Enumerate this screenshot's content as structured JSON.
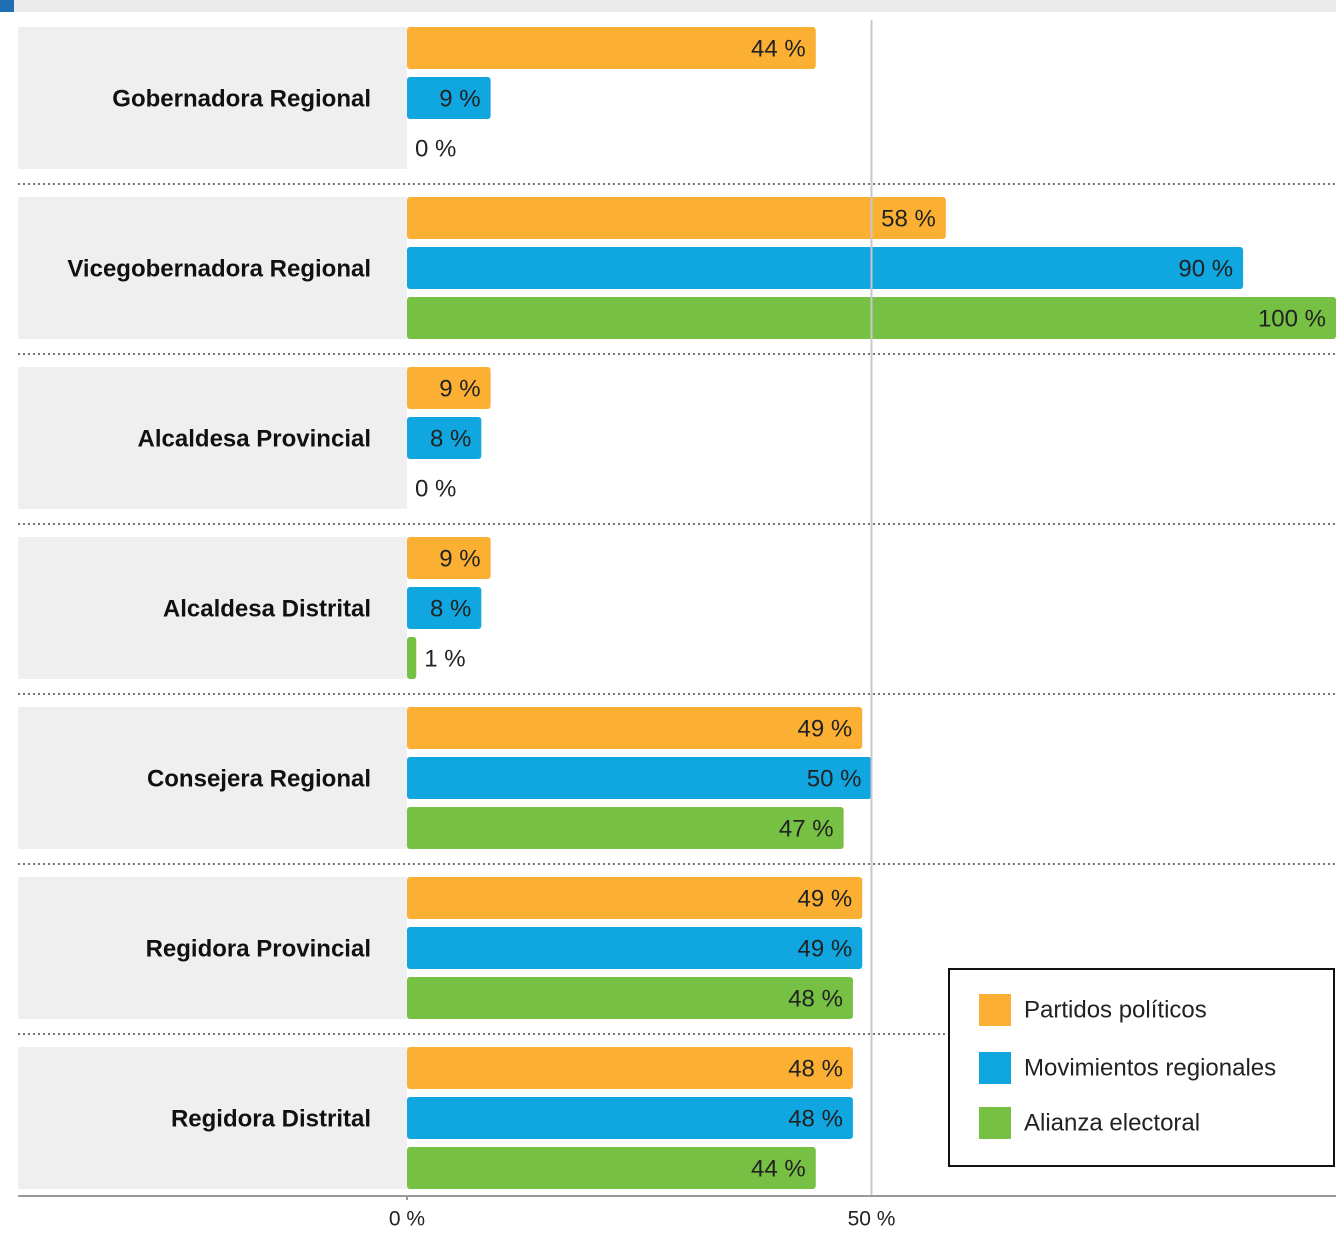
{
  "chart_data": {
    "type": "barh",
    "categories": [
      "Gobernadora Regional",
      "Vicegobernadora Regional",
      "Alcaldesa Provincial",
      "Alcaldesa Distrital",
      "Consejera Regional",
      "Regidora Provincial",
      "Regidora Distrital"
    ],
    "series": [
      {
        "name": "Partidos políticos",
        "color": "#fbb034",
        "values": [
          44,
          58,
          9,
          9,
          49,
          49,
          48
        ],
        "value_labels": [
          "44 %",
          "58 %",
          "9 %",
          "9 %",
          "49 %",
          "49 %",
          "48 %"
        ]
      },
      {
        "name": "Movimientos regionales",
        "color": "#10a6e0",
        "values": [
          9,
          90,
          8,
          8,
          50,
          49,
          48
        ],
        "value_labels": [
          "9 %",
          "90 %",
          "8 %",
          "8 %",
          "50 %",
          "49 %",
          "48 %"
        ]
      },
      {
        "name": "Alianza electoral",
        "color": "#76c043",
        "values": [
          0,
          100,
          0,
          1,
          47,
          48,
          44
        ],
        "value_labels": [
          "0 %",
          "100 %",
          "0 %",
          "1 %",
          "47 %",
          "48 %",
          "44 %"
        ]
      }
    ],
    "xlim": [
      0,
      100
    ],
    "xticks": [
      {
        "value": 0,
        "label": "0 %"
      },
      {
        "value": 50,
        "label": "50 %"
      }
    ],
    "legend": "lower right"
  }
}
